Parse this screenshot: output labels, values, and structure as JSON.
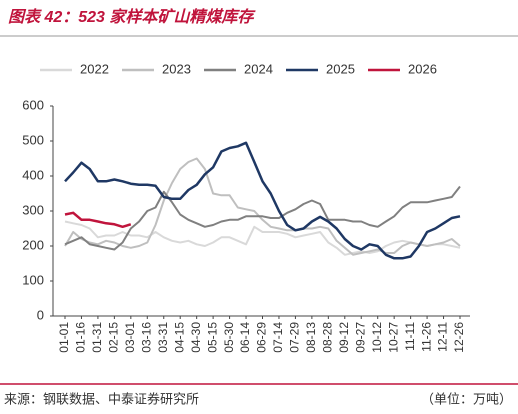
{
  "chart_data": {
    "type": "line",
    "title": "图表 42：523 家样本矿山精煤库存",
    "source": "来源：钢联数据、中泰证券研究所",
    "unit": "（单位：万吨）",
    "categories": [
      "01-01",
      null,
      "01-16",
      null,
      "01-31",
      null,
      "02-15",
      null,
      "03-01",
      null,
      "03-16",
      null,
      "03-31",
      null,
      "04-15",
      null,
      "04-30",
      null,
      "05-15",
      null,
      "05-30",
      null,
      "06-14",
      null,
      "06-29",
      null,
      "07-14",
      null,
      "07-29",
      null,
      "08-13",
      null,
      "08-28",
      null,
      "09-12",
      null,
      "09-27",
      null,
      "10-12",
      null,
      "10-27",
      null,
      "11-11",
      null,
      "11-26",
      null,
      "12-11",
      null,
      "12-26"
    ],
    "ylim": [
      0,
      600
    ],
    "yticks": [
      0,
      100,
      200,
      300,
      400,
      500,
      600
    ],
    "grid": false,
    "legend": "top",
    "series": [
      {
        "name": "2022",
        "color": "#d9d9d9",
        "values": [
          270,
          265,
          260,
          250,
          225,
          230,
          230,
          240,
          230,
          230,
          225,
          240,
          225,
          215,
          210,
          215,
          205,
          200,
          210,
          225,
          225,
          215,
          205,
          255,
          240,
          240,
          240,
          235,
          225,
          230,
          235,
          240,
          210,
          195,
          175,
          180,
          185,
          180,
          185,
          200,
          210,
          215,
          210,
          205,
          200,
          205,
          205,
          200,
          195
        ]
      },
      {
        "name": "2023",
        "color": "#bfbfbf",
        "values": [
          200,
          240,
          220,
          210,
          205,
          215,
          210,
          200,
          195,
          200,
          210,
          260,
          330,
          380,
          420,
          440,
          450,
          420,
          350,
          345,
          345,
          310,
          305,
          300,
          275,
          255,
          250,
          245,
          245,
          250,
          250,
          255,
          250,
          215,
          195,
          175,
          180,
          185,
          190,
          180,
          180,
          200,
          210,
          205,
          200,
          205,
          210,
          220,
          200
        ]
      },
      {
        "name": "2024",
        "color": "#808080",
        "values": [
          205,
          215,
          225,
          205,
          200,
          195,
          190,
          210,
          250,
          270,
          300,
          310,
          355,
          325,
          290,
          275,
          265,
          255,
          260,
          270,
          275,
          275,
          285,
          285,
          285,
          280,
          280,
          295,
          305,
          320,
          330,
          320,
          275,
          275,
          275,
          270,
          270,
          260,
          255,
          270,
          285,
          310,
          325,
          325,
          325,
          330,
          335,
          340,
          370
        ]
      },
      {
        "name": "2025",
        "color": "#1f3864",
        "values": [
          385,
          410,
          438,
          420,
          385,
          385,
          390,
          385,
          378,
          375,
          375,
          372,
          340,
          335,
          335,
          360,
          375,
          405,
          425,
          470,
          480,
          485,
          495,
          440,
          385,
          350,
          300,
          260,
          245,
          250,
          270,
          283,
          270,
          250,
          220,
          200,
          190,
          205,
          200,
          175,
          165,
          165,
          170,
          200,
          240,
          250,
          265,
          280,
          285
        ]
      },
      {
        "name": "2026",
        "color": "#c0143c",
        "values": [
          290,
          295,
          275,
          275,
          270,
          265,
          262,
          255,
          262,
          null,
          null,
          null,
          null,
          null,
          null,
          null,
          null,
          null,
          null,
          null,
          null,
          null,
          null,
          null,
          null,
          null,
          null,
          null,
          null,
          null,
          null,
          null,
          null,
          null,
          null,
          null,
          null,
          null,
          null,
          null,
          null,
          null,
          null,
          null,
          null,
          null,
          null,
          null,
          null
        ]
      }
    ]
  }
}
